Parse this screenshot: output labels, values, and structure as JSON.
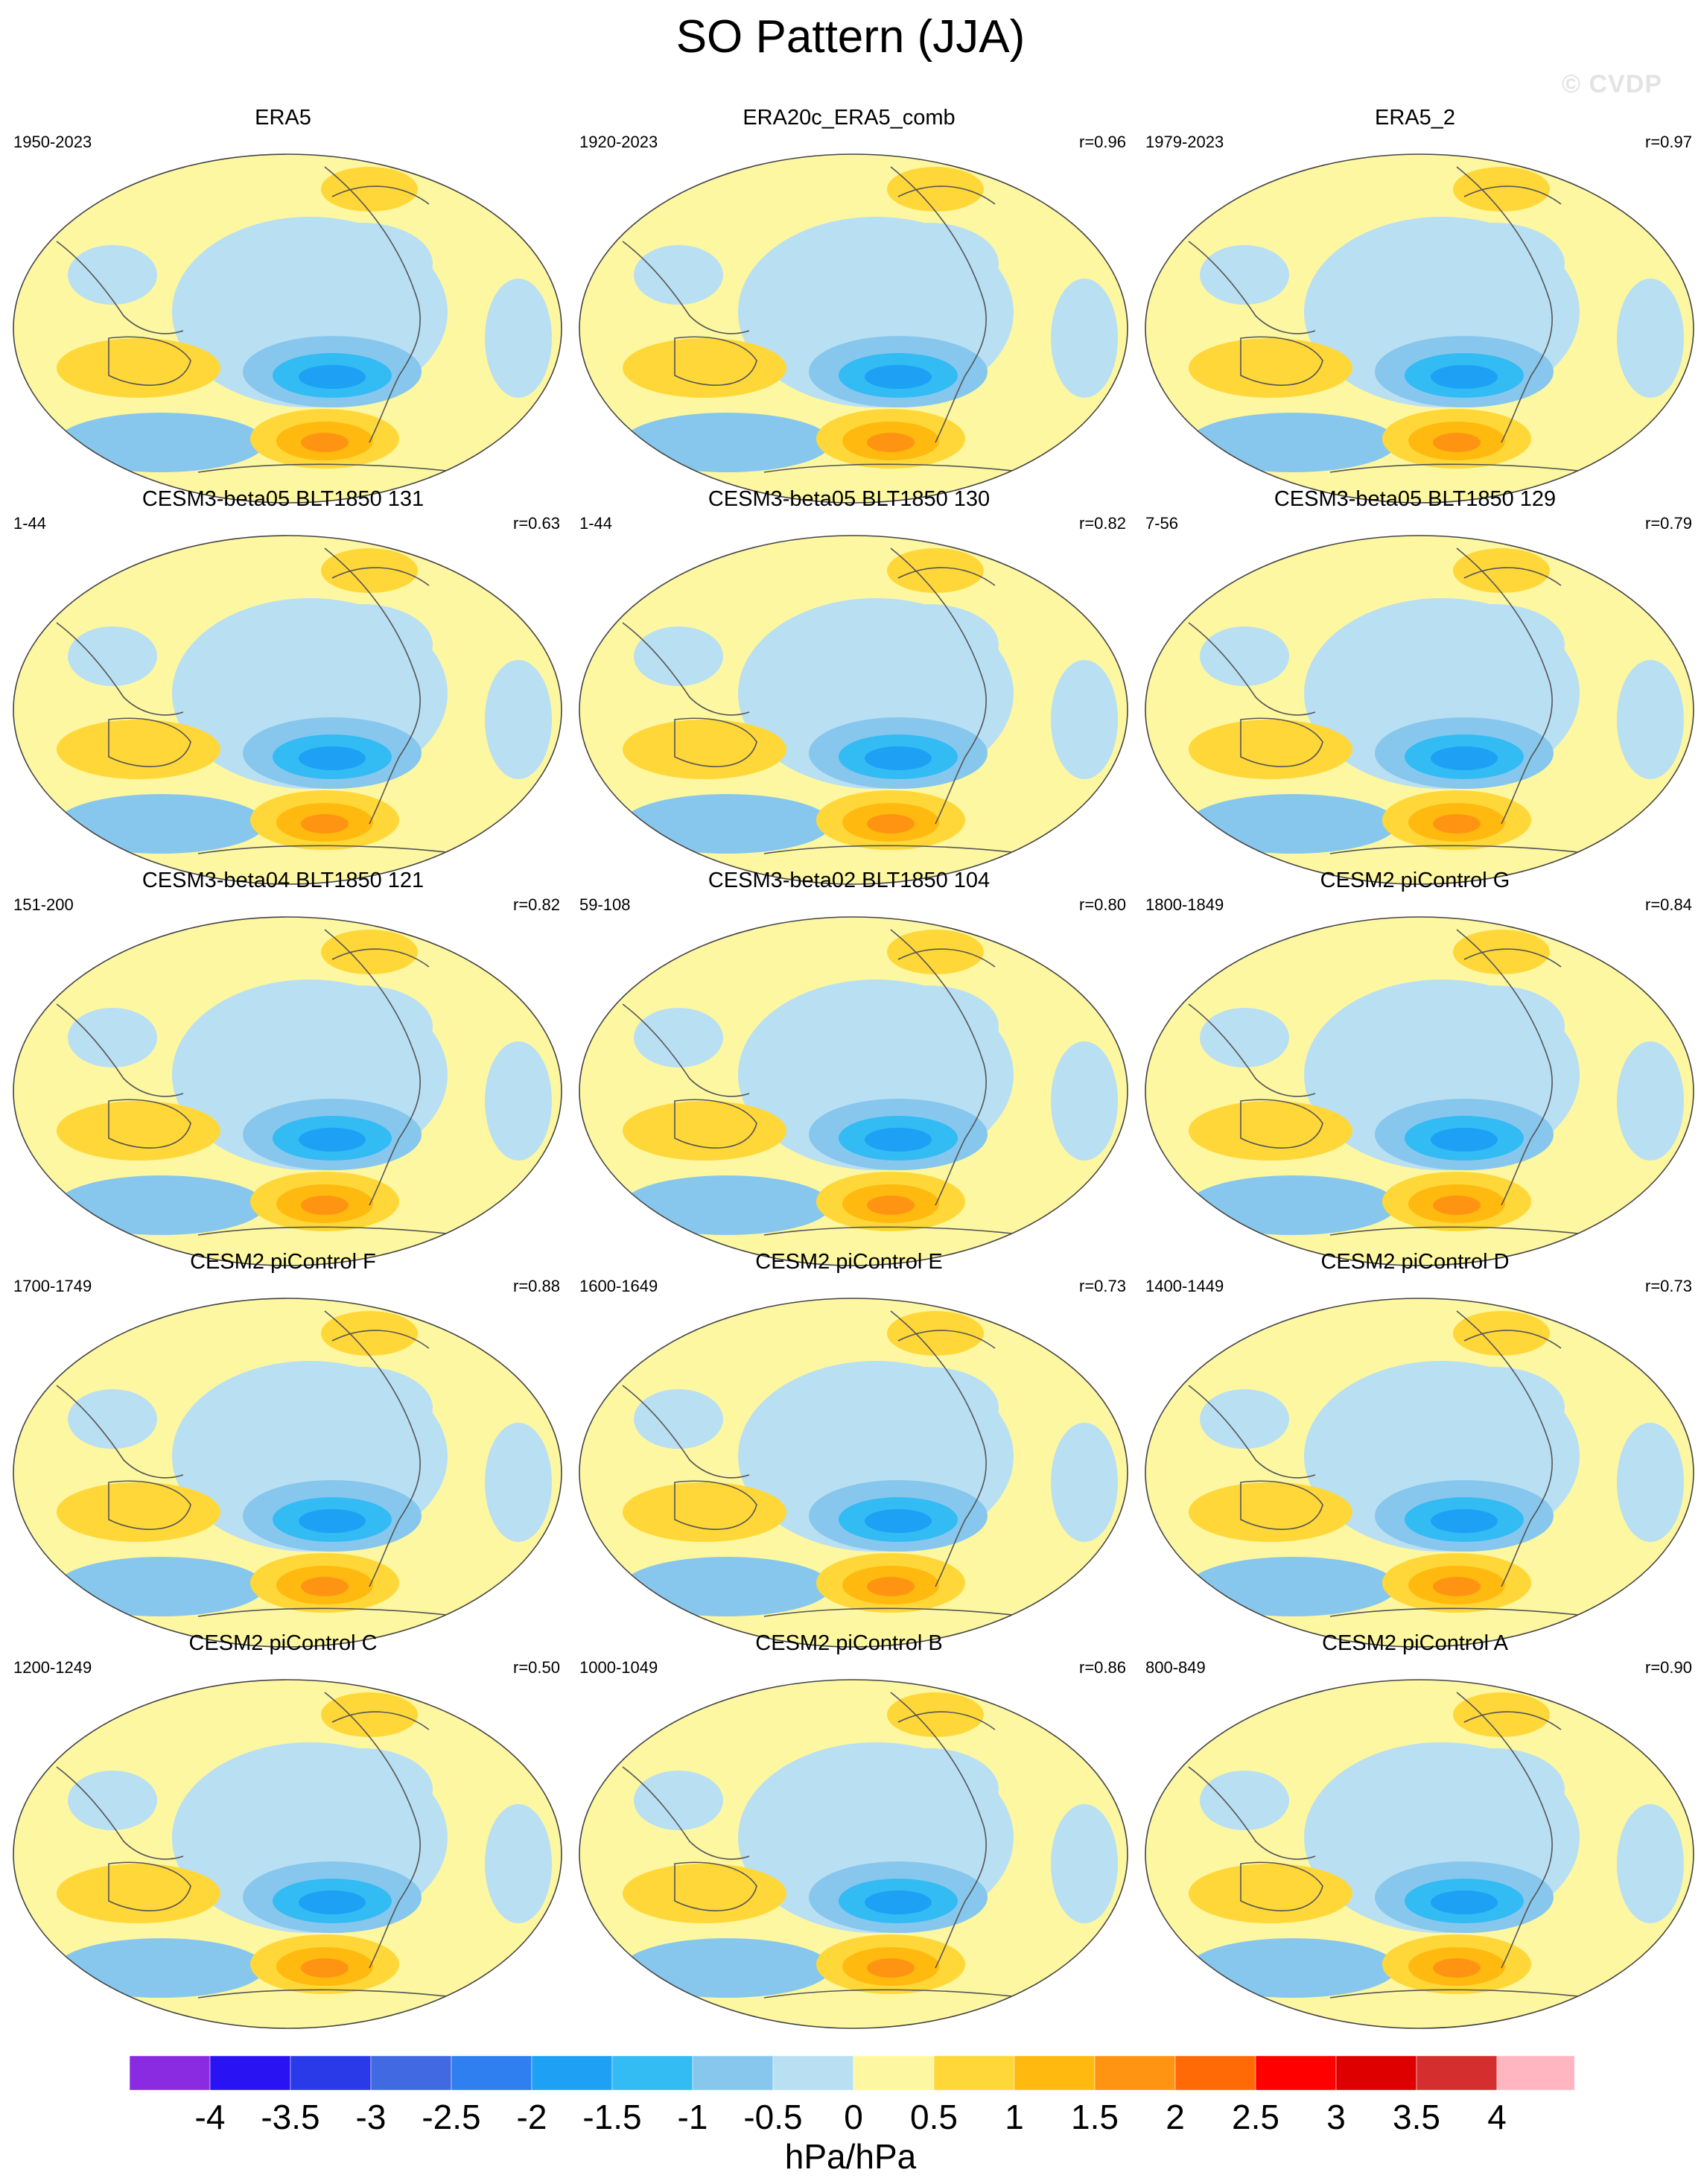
{
  "title": "SO Pattern (JJA)",
  "copyright": "© CVDP",
  "chart_data": {
    "type": "heatmap",
    "projection": "robinson",
    "units": "hPa/hPa",
    "colorbar": {
      "levels": [
        -4,
        -3.5,
        -3,
        -2.5,
        -2,
        -1.5,
        -1,
        -0.5,
        0,
        0.5,
        1,
        1.5,
        2,
        2.5,
        3,
        3.5,
        4
      ],
      "tick_labels": [
        "-4",
        "-3.5",
        "-3",
        "-2.5",
        "-2",
        "-1.5",
        "-1",
        "-0.5",
        "0",
        "0.5",
        "1",
        "1.5",
        "2",
        "2.5",
        "3",
        "3.5",
        "4"
      ],
      "colors": [
        "#8a2be2",
        "#2a13f2",
        "#2a3ae8",
        "#4169e1",
        "#2f7ff0",
        "#1ea0f5",
        "#33bbf4",
        "#87c7ed",
        "#b9dff3",
        "#fdf7a2",
        "#ffd738",
        "#ffb90f",
        "#ff9412",
        "#ff6a07",
        "#ff0000",
        "#de0000",
        "#d52e2e",
        "#ffb6c1"
      ]
    },
    "panels": [
      {
        "name": "ERA5",
        "years": "1950-2023",
        "r": ""
      },
      {
        "name": "ERA20c_ERA5_comb",
        "years": "1920-2023",
        "r": "r=0.96"
      },
      {
        "name": "ERA5_2",
        "years": "1979-2023",
        "r": "r=0.97"
      },
      {
        "name": "CESM3-beta05 BLT1850 131",
        "years": "1-44",
        "r": "r=0.63"
      },
      {
        "name": "CESM3-beta05 BLT1850 130",
        "years": "1-44",
        "r": "r=0.82"
      },
      {
        "name": "CESM3-beta05 BLT1850 129",
        "years": "7-56",
        "r": "r=0.79"
      },
      {
        "name": "CESM3-beta04 BLT1850 121",
        "years": "151-200",
        "r": "r=0.82"
      },
      {
        "name": "CESM3-beta02 BLT1850 104",
        "years": "59-108",
        "r": "r=0.80"
      },
      {
        "name": "CESM2 piControl G",
        "years": "1800-1849",
        "r": "r=0.84"
      },
      {
        "name": "CESM2 piControl F",
        "years": "1700-1749",
        "r": "r=0.88"
      },
      {
        "name": "CESM2 piControl E",
        "years": "1600-1649",
        "r": "r=0.73"
      },
      {
        "name": "CESM2 piControl D",
        "years": "1400-1449",
        "r": "r=0.73"
      },
      {
        "name": "CESM2 piControl C",
        "years": "1200-1249",
        "r": "r=0.50"
      },
      {
        "name": "CESM2 piControl B",
        "years": "1000-1049",
        "r": "r=0.86"
      },
      {
        "name": "CESM2 piControl A",
        "years": "800-849",
        "r": "r=0.90"
      }
    ]
  }
}
